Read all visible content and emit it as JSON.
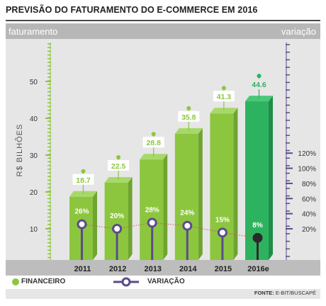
{
  "title": "PREVISÃO DO FATURAMENTO DO E-COMMERCE EM 2016",
  "header": {
    "left": "faturamento",
    "right": "variação"
  },
  "legend": {
    "financeiro": "FINANCEIRO",
    "variacao": "VARIAÇÃO"
  },
  "source": {
    "label": "FONTE:",
    "text": " E-BIT/BUSCAPÉ"
  },
  "colors": {
    "bar": "#8cc63f",
    "bar_highlight": "#2db35f",
    "variation": "#5c4b8a",
    "variation_highlight": "#2a2a2a",
    "trend": "#d9534f"
  },
  "chart_data": {
    "type": "bar",
    "categories": [
      "2011",
      "2012",
      "2013",
      "2014",
      "2015",
      "2016e"
    ],
    "ylabel": "R$ BILHÕES",
    "ylim": [
      0,
      55
    ],
    "yticks": [
      10,
      20,
      30,
      40,
      50
    ],
    "y2lim": [
      0,
      140
    ],
    "y2ticks": [
      "20%",
      "40%",
      "60%",
      "80%",
      "100%",
      "120%"
    ],
    "y2tick_values": [
      20,
      40,
      60,
      80,
      100,
      120
    ],
    "series": [
      {
        "name": "FINANCEIRO",
        "values": [
          18.7,
          22.5,
          28.8,
          35.8,
          41.3,
          44.6
        ],
        "labels": [
          "18.7",
          "22.5",
          "28.8",
          "35.8",
          "41.3",
          "44.6"
        ]
      },
      {
        "name": "VARIAÇÃO",
        "values": [
          26,
          20,
          28,
          24,
          15,
          8
        ],
        "labels": [
          "26%",
          "20%",
          "28%",
          "24%",
          "15%",
          "8%"
        ]
      }
    ]
  }
}
